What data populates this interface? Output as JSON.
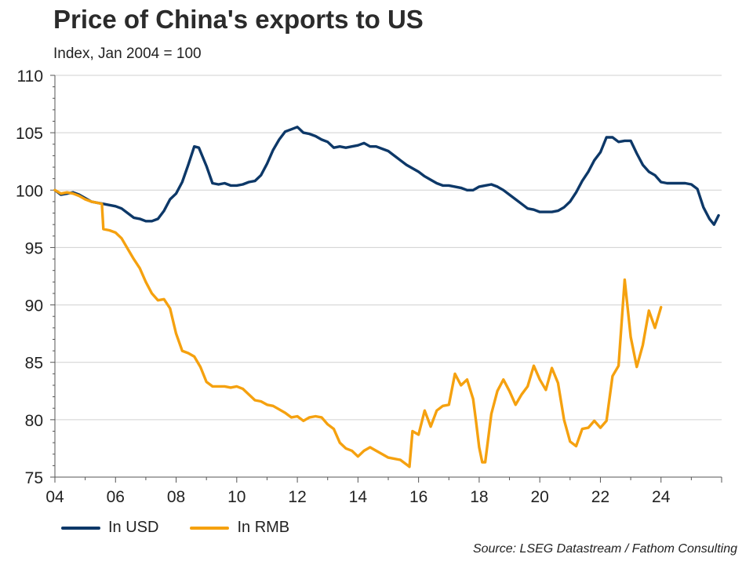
{
  "chart_data": {
    "type": "line",
    "title": "Price of China's exports to US",
    "subtitle": "Index, Jan 2004 = 100",
    "xlabel": "",
    "ylabel": "",
    "xlim": [
      2004,
      2026
    ],
    "ylim": [
      75,
      110
    ],
    "yticks": [
      75,
      80,
      85,
      90,
      95,
      100,
      105,
      110
    ],
    "xticks": [
      2004,
      2006,
      2008,
      2010,
      2012,
      2014,
      2016,
      2018,
      2020,
      2022,
      2024
    ],
    "xtick_labels": [
      "04",
      "06",
      "08",
      "10",
      "12",
      "14",
      "16",
      "18",
      "20",
      "22",
      "24"
    ],
    "grid": "horizontal",
    "legend_position": "bottom-left",
    "source": "Source: LSEG Datastream / Fathom Consulting",
    "series": [
      {
        "name": "In USD",
        "color": "#0d3868",
        "x": [
          2004.0,
          2004.2,
          2004.4,
          2004.6,
          2004.8,
          2005.0,
          2005.2,
          2005.4,
          2005.6,
          2005.8,
          2006.0,
          2006.2,
          2006.4,
          2006.6,
          2006.8,
          2007.0,
          2007.2,
          2007.4,
          2007.6,
          2007.8,
          2008.0,
          2008.2,
          2008.4,
          2008.6,
          2008.75,
          2009.0,
          2009.2,
          2009.4,
          2009.6,
          2009.8,
          2010.0,
          2010.2,
          2010.4,
          2010.6,
          2010.8,
          2011.0,
          2011.2,
          2011.4,
          2011.6,
          2011.8,
          2012.0,
          2012.2,
          2012.4,
          2012.6,
          2012.8,
          2013.0,
          2013.2,
          2013.4,
          2013.6,
          2013.8,
          2014.0,
          2014.2,
          2014.4,
          2014.6,
          2014.8,
          2015.0,
          2015.2,
          2015.4,
          2015.6,
          2015.8,
          2016.0,
          2016.2,
          2016.4,
          2016.6,
          2016.8,
          2017.0,
          2017.2,
          2017.4,
          2017.6,
          2017.8,
          2018.0,
          2018.2,
          2018.4,
          2018.6,
          2018.8,
          2019.0,
          2019.2,
          2019.4,
          2019.6,
          2019.8,
          2020.0,
          2020.2,
          2020.4,
          2020.6,
          2020.8,
          2021.0,
          2021.2,
          2021.4,
          2021.6,
          2021.8,
          2022.0,
          2022.2,
          2022.4,
          2022.6,
          2022.8,
          2023.0,
          2023.2,
          2023.4,
          2023.6,
          2023.8,
          2024.0,
          2024.2,
          2024.4,
          2024.6,
          2024.8,
          2025.0,
          2025.2,
          2025.4,
          2025.6,
          2025.75,
          2025.9
        ],
        "values": [
          100.0,
          99.6,
          99.7,
          99.8,
          99.6,
          99.3,
          99.0,
          98.9,
          98.8,
          98.7,
          98.6,
          98.4,
          98.0,
          97.6,
          97.5,
          97.3,
          97.3,
          97.5,
          98.2,
          99.2,
          99.7,
          100.7,
          102.2,
          103.8,
          103.7,
          102.1,
          100.6,
          100.5,
          100.6,
          100.4,
          100.4,
          100.5,
          100.7,
          100.8,
          101.3,
          102.3,
          103.5,
          104.4,
          105.1,
          105.3,
          105.5,
          105.0,
          104.9,
          104.7,
          104.4,
          104.2,
          103.7,
          103.8,
          103.7,
          103.8,
          103.9,
          104.1,
          103.8,
          103.8,
          103.6,
          103.4,
          103.0,
          102.6,
          102.2,
          101.9,
          101.6,
          101.2,
          100.9,
          100.6,
          100.4,
          100.4,
          100.3,
          100.2,
          100.0,
          100.0,
          100.3,
          100.4,
          100.5,
          100.3,
          100.0,
          99.6,
          99.2,
          98.8,
          98.4,
          98.3,
          98.1,
          98.1,
          98.1,
          98.2,
          98.5,
          99.0,
          99.8,
          100.8,
          101.6,
          102.6,
          103.3,
          104.6,
          104.6,
          104.2,
          104.3,
          104.3,
          103.2,
          102.2,
          101.6,
          101.3,
          100.7,
          100.6,
          100.6,
          100.6,
          100.6,
          100.5,
          100.1,
          98.5,
          97.5,
          97.0,
          97.8
        ]
      },
      {
        "name": "In RMB",
        "color": "#f5a10f",
        "x": [
          2004.0,
          2004.2,
          2004.4,
          2004.6,
          2004.8,
          2005.0,
          2005.2,
          2005.4,
          2005.55,
          2005.6,
          2005.8,
          2006.0,
          2006.2,
          2006.4,
          2006.6,
          2006.8,
          2007.0,
          2007.2,
          2007.4,
          2007.6,
          2007.8,
          2008.0,
          2008.2,
          2008.4,
          2008.6,
          2008.8,
          2009.0,
          2009.2,
          2009.4,
          2009.6,
          2009.8,
          2010.0,
          2010.2,
          2010.4,
          2010.6,
          2010.8,
          2011.0,
          2011.2,
          2011.4,
          2011.6,
          2011.8,
          2012.0,
          2012.2,
          2012.4,
          2012.6,
          2012.8,
          2013.0,
          2013.2,
          2013.4,
          2013.6,
          2013.8,
          2014.0,
          2014.2,
          2014.4,
          2014.6,
          2014.8,
          2015.0,
          2015.2,
          2015.4,
          2015.6,
          2015.7,
          2015.8,
          2016.0,
          2016.2,
          2016.4,
          2016.6,
          2016.8,
          2017.0,
          2017.2,
          2017.4,
          2017.6,
          2017.8,
          2017.9,
          2018.0,
          2018.1,
          2018.2,
          2018.4,
          2018.6,
          2018.8,
          2019.0,
          2019.2,
          2019.4,
          2019.6,
          2019.8,
          2020.0,
          2020.2,
          2020.4,
          2020.6,
          2020.8,
          2021.0,
          2021.2,
          2021.4,
          2021.6,
          2021.8,
          2022.0,
          2022.2,
          2022.4,
          2022.6,
          2022.8,
          2023.0,
          2023.2,
          2023.4,
          2023.6,
          2023.8,
          2024.0
        ],
        "values": [
          100.0,
          99.7,
          99.8,
          99.7,
          99.5,
          99.2,
          99.0,
          98.9,
          98.8,
          96.6,
          96.5,
          96.3,
          95.8,
          94.9,
          94.0,
          93.2,
          92.0,
          91.0,
          90.4,
          90.5,
          89.7,
          87.5,
          86.0,
          85.8,
          85.5,
          84.6,
          83.3,
          82.9,
          82.9,
          82.9,
          82.8,
          82.9,
          82.7,
          82.2,
          81.7,
          81.6,
          81.3,
          81.2,
          80.9,
          80.6,
          80.2,
          80.3,
          79.9,
          80.2,
          80.3,
          80.2,
          79.6,
          79.2,
          78.0,
          77.5,
          77.3,
          76.8,
          77.3,
          77.6,
          77.3,
          77.0,
          76.7,
          76.6,
          76.5,
          76.1,
          75.9,
          79.0,
          78.7,
          80.8,
          79.4,
          80.8,
          81.2,
          81.3,
          84.0,
          83.0,
          83.5,
          81.8,
          79.8,
          77.6,
          76.3,
          76.3,
          80.5,
          82.5,
          83.5,
          82.5,
          81.3,
          82.2,
          82.9,
          84.7,
          83.5,
          82.6,
          84.5,
          83.2,
          80.0,
          78.1,
          77.7,
          79.2,
          79.3,
          79.9,
          79.3,
          79.9,
          83.8,
          84.7,
          92.2,
          87.2,
          84.6,
          86.5,
          89.5,
          88.0,
          89.8
        ]
      }
    ]
  }
}
